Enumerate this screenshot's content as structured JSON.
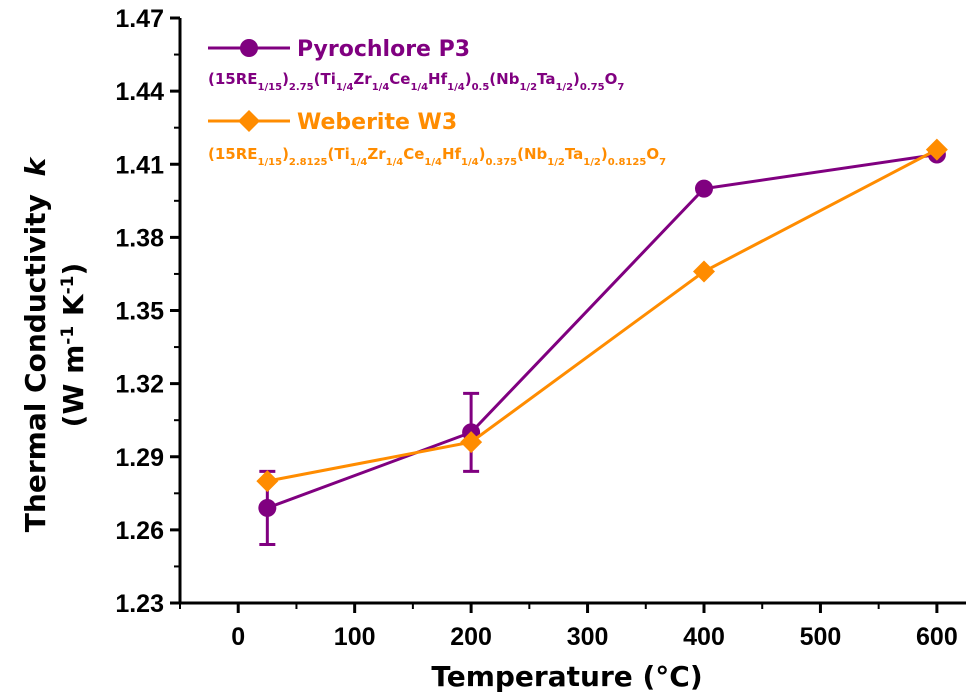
{
  "chart_data": {
    "type": "line",
    "xlabel": "Temperature (°C)",
    "ylabel_line1": "Thermal Conductivity",
    "ylabel_symbol": "k",
    "ylabel_line2_parts": [
      "(W m",
      "-1",
      " K",
      "-1",
      ")"
    ],
    "xlim": [
      -50,
      625
    ],
    "ylim": [
      1.23,
      1.47
    ],
    "xticks": [
      0,
      100,
      200,
      300,
      400,
      500,
      600
    ],
    "yticks": [
      1.23,
      1.26,
      1.29,
      1.32,
      1.35,
      1.38,
      1.41,
      1.44,
      1.47
    ],
    "xtick_labels": [
      "0",
      "100",
      "200",
      "300",
      "400",
      "500",
      "600"
    ],
    "ytick_labels": [
      "1.23",
      "1.26",
      "1.29",
      "1.32",
      "1.35",
      "1.38",
      "1.41",
      "1.44",
      "1.47"
    ],
    "grid": false,
    "legend_position": "top-left",
    "series": [
      {
        "name": "Pyrochlore P3",
        "color": "#800080",
        "marker": "circle",
        "formula": [
          [
            "(15RE",
            "n"
          ],
          [
            "1/15",
            "sub"
          ],
          [
            ")",
            "n"
          ],
          [
            "2.75",
            "sub"
          ],
          [
            "(Ti",
            "n"
          ],
          [
            "1/4",
            "sub"
          ],
          [
            "Zr",
            "n"
          ],
          [
            "1/4",
            "sub"
          ],
          [
            "Ce",
            "n"
          ],
          [
            "1/4",
            "sub"
          ],
          [
            "Hf",
            "n"
          ],
          [
            "1/4",
            "sub"
          ],
          [
            ")",
            "n"
          ],
          [
            "0.5",
            "sub"
          ],
          [
            "(Nb",
            "n"
          ],
          [
            "1/2",
            "sub"
          ],
          [
            "Ta",
            "n"
          ],
          [
            "1/2",
            "sub"
          ],
          [
            ")",
            "n"
          ],
          [
            "0.75",
            "sub"
          ],
          [
            "O",
            "n"
          ],
          [
            "7",
            "sub"
          ]
        ],
        "x": [
          25,
          200,
          400,
          600
        ],
        "y": [
          1.269,
          1.3,
          1.4,
          1.414
        ],
        "err": [
          0.015,
          0.016,
          0,
          0
        ]
      },
      {
        "name": "Weberite W3",
        "color": "#FF8C00",
        "marker": "diamond",
        "formula": [
          [
            "(15RE",
            "n"
          ],
          [
            "1/15",
            "sub"
          ],
          [
            ")",
            "n"
          ],
          [
            "2.8125",
            "sub"
          ],
          [
            "(Ti",
            "n"
          ],
          [
            "1/4",
            "sub"
          ],
          [
            "Zr",
            "n"
          ],
          [
            "1/4",
            "sub"
          ],
          [
            "Ce",
            "n"
          ],
          [
            "1/4",
            "sub"
          ],
          [
            "Hf",
            "n"
          ],
          [
            "1/4",
            "sub"
          ],
          [
            ")",
            "n"
          ],
          [
            "0.375",
            "sub"
          ],
          [
            "(Nb",
            "n"
          ],
          [
            "1/2",
            "sub"
          ],
          [
            "Ta",
            "n"
          ],
          [
            "1/2",
            "sub"
          ],
          [
            ")",
            "n"
          ],
          [
            "0.8125",
            "sub"
          ],
          [
            "O",
            "n"
          ],
          [
            "7",
            "sub"
          ]
        ],
        "x": [
          25,
          200,
          400,
          600
        ],
        "y": [
          1.28,
          1.296,
          1.366,
          1.416
        ],
        "err": [
          0,
          0,
          0,
          0
        ]
      }
    ]
  }
}
